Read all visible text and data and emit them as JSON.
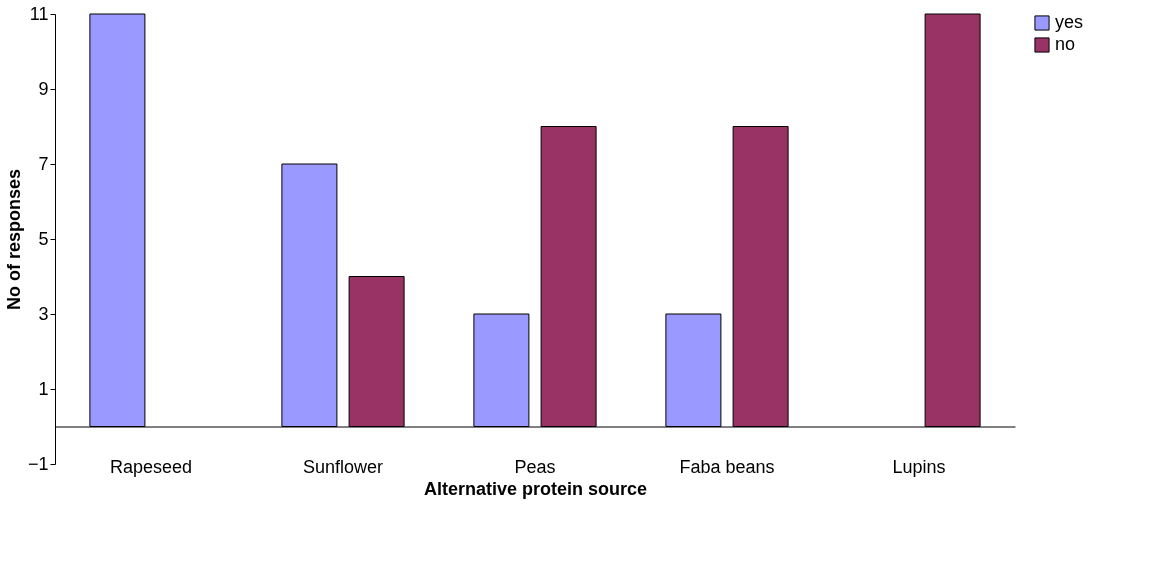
{
  "chart_data": {
    "type": "bar",
    "xlabel": "Alternative protein source",
    "ylabel": "No of responses",
    "categories": [
      "Rapeseed",
      "Sunflower",
      "Peas",
      "Faba beans",
      "Lupins"
    ],
    "series": [
      {
        "name": "yes",
        "color": "#9999ff",
        "values": [
          11,
          7,
          3,
          3,
          0
        ]
      },
      {
        "name": "no",
        "color": "#993366",
        "values": [
          0,
          4,
          8,
          8,
          11
        ]
      }
    ],
    "ylim": [
      -1,
      11
    ],
    "yticks": [
      -1,
      1,
      3,
      5,
      7,
      9,
      11
    ],
    "grid": false,
    "legend": "right"
  }
}
